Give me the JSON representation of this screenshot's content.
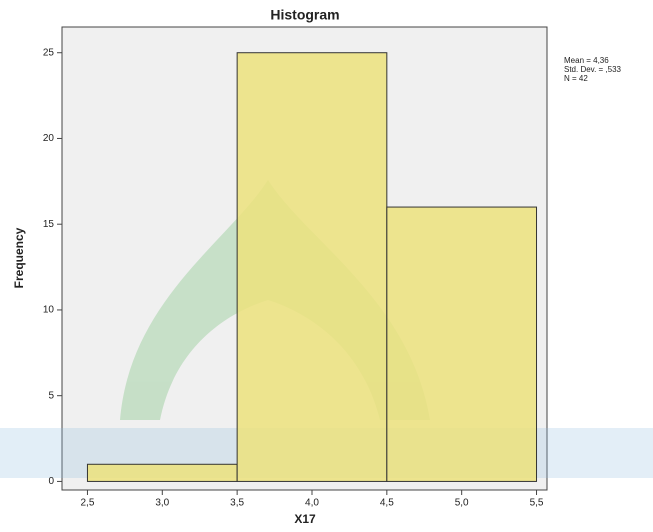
{
  "chart_data": {
    "type": "histogram",
    "title": "Histogram",
    "x_label": "X17",
    "y_label": "Frequency",
    "bins": [
      2.5,
      3.5,
      4.5,
      5.5
    ],
    "values": [
      1,
      25,
      16
    ],
    "color": "#ece27c",
    "xlim": [
      2.33,
      5.57
    ],
    "ylim": [
      -0.5,
      26.5
    ],
    "xticks": [
      {
        "value": 2.5,
        "label": "2,5"
      },
      {
        "value": 3.0,
        "label": "3,0"
      },
      {
        "value": 3.5,
        "label": "3,5"
      },
      {
        "value": 4.0,
        "label": "4,0"
      },
      {
        "value": 4.5,
        "label": "4,5"
      },
      {
        "value": 5.0,
        "label": "5,0"
      },
      {
        "value": 5.5,
        "label": "5,5"
      }
    ],
    "yticks": [
      0,
      5,
      10,
      15,
      20,
      25
    ],
    "stats": [
      "Mean = 4,36",
      "Std. Dev. = ,533",
      "N = 42"
    ]
  }
}
